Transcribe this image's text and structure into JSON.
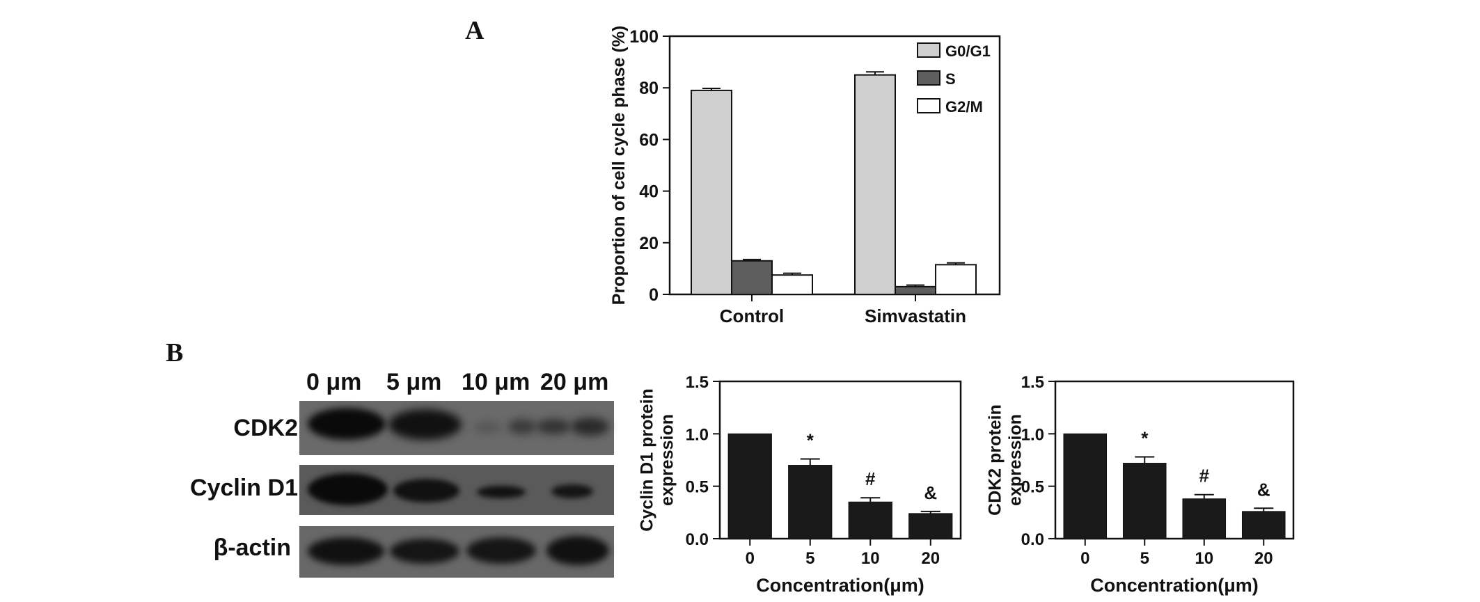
{
  "panels": {
    "a_label": "A",
    "b_label": "B"
  },
  "blot": {
    "lanes": [
      "0 μm",
      "5 μm",
      "10 μm",
      "20 μm"
    ],
    "rows": [
      "CDK2",
      "Cyclin D1",
      "β-actin"
    ]
  },
  "colors": {
    "g0g1": "#cfcfcf",
    "s": "#5d5d5d",
    "g2m": "#ffffff",
    "bars_b": "#1a1a1a"
  },
  "chart_data": [
    {
      "type": "bar",
      "title": "",
      "xlabel": "",
      "ylabel": "Proportion of cell cycle phase (%)",
      "categories": [
        "Control",
        "Simvastatin"
      ],
      "ylim": [
        0,
        100
      ],
      "yticks": [
        "0",
        "20",
        "40",
        "60",
        "80",
        "100"
      ],
      "legend": "top-right",
      "grid": false,
      "series": [
        {
          "name": "G0/G1",
          "values": [
            79,
            85
          ],
          "errors": [
            0.8,
            1.2
          ]
        },
        {
          "name": "S",
          "values": [
            13,
            3
          ],
          "errors": [
            0.5,
            0.6
          ]
        },
        {
          "name": "G2/M",
          "values": [
            7.5,
            11.5
          ],
          "errors": [
            0.7,
            0.7
          ]
        }
      ]
    },
    {
      "type": "bar",
      "title": "",
      "xlabel": "Concentration(μm)",
      "ylabel": "Cyclin D1 protein expression",
      "categories": [
        "0",
        "5",
        "10",
        "20"
      ],
      "values": [
        1.0,
        0.7,
        0.35,
        0.24
      ],
      "errors": [
        0,
        0.06,
        0.04,
        0.02
      ],
      "annotations": [
        "",
        "*",
        "#",
        "&"
      ],
      "ylim": [
        0,
        1.5
      ],
      "yticks": [
        "0.0",
        "0.5",
        "1.0",
        "1.5"
      ]
    },
    {
      "type": "bar",
      "title": "",
      "xlabel": "Concentration(μm)",
      "ylabel": "CDK2 protein expression",
      "categories": [
        "0",
        "5",
        "10",
        "20"
      ],
      "values": [
        1.0,
        0.72,
        0.38,
        0.26
      ],
      "errors": [
        0,
        0.06,
        0.04,
        0.03
      ],
      "annotations": [
        "",
        "*",
        "#",
        "&"
      ],
      "ylim": [
        0,
        1.5
      ],
      "yticks": [
        "0.0",
        "0.5",
        "1.0",
        "1.5"
      ]
    }
  ]
}
